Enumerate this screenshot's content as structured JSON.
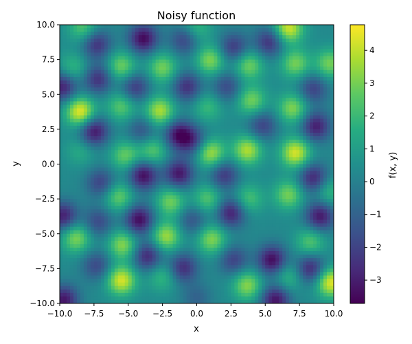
{
  "chart_data": {
    "type": "heatmap",
    "title": "Noisy function",
    "xlabel": "x",
    "ylabel": "y",
    "colorbar_label": "f(x, y)",
    "colormap": "viridis",
    "xlim": [
      -10,
      10
    ],
    "ylim": [
      -10,
      10
    ],
    "clim": [
      -3.71,
      4.78
    ],
    "xticks": [
      -10,
      -7.5,
      -5,
      -2.5,
      0,
      2.5,
      5,
      7.5,
      10
    ],
    "xtick_labels": [
      "−10.0",
      "−7.5",
      "−5.0",
      "−2.5",
      "0.0",
      "2.5",
      "5.0",
      "7.5",
      "10.0"
    ],
    "yticks": [
      -10,
      -7.5,
      -5,
      -2.5,
      0,
      2.5,
      5,
      7.5,
      10
    ],
    "ytick_labels": [
      "−10.0",
      "−7.5",
      "−5.0",
      "−2.5",
      "0.0",
      "2.5",
      "5.0",
      "7.5",
      "10.0"
    ],
    "cticks": [
      -3,
      -2,
      -1,
      0,
      1,
      2,
      3,
      4
    ],
    "ctick_labels": [
      "−3",
      "−2",
      "−1",
      "0",
      "1",
      "2",
      "3",
      "4"
    ],
    "grid": false,
    "background_level": 0.3,
    "extrema": [
      {
        "x": -8.5,
        "y": 3.75,
        "v": 4.6
      },
      {
        "x": 6.7,
        "y": 9.75,
        "v": 4.3
      },
      {
        "x": -5.5,
        "y": -8.35,
        "v": 4.3
      },
      {
        "x": 7.2,
        "y": 0.8,
        "v": 4.3
      },
      {
        "x": 9.8,
        "y": -8.5,
        "v": 4.5
      },
      {
        "x": -2.7,
        "y": 3.8,
        "v": 3.8
      },
      {
        "x": 3.7,
        "y": 1.0,
        "v": 3.8
      },
      {
        "x": 1.0,
        "y": 0.8,
        "v": 3.8
      },
      {
        "x": -5.5,
        "y": 7.0,
        "v": 3
      },
      {
        "x": -2.5,
        "y": 6.9,
        "v": 3
      },
      {
        "x": 1.0,
        "y": 7.45,
        "v": 3.2
      },
      {
        "x": 3.8,
        "y": 7.1,
        "v": 3
      },
      {
        "x": 7.2,
        "y": 7.2,
        "v": 3
      },
      {
        "x": 9.7,
        "y": 7.2,
        "v": 3
      },
      {
        "x": -9,
        "y": 6.9,
        "v": 2
      },
      {
        "x": -5.5,
        "y": 4.15,
        "v": 2.6
      },
      {
        "x": 4.0,
        "y": 4.55,
        "v": 3
      },
      {
        "x": 7.0,
        "y": 4.0,
        "v": 3.2
      },
      {
        "x": 0.8,
        "y": 4.1,
        "v": 2
      },
      {
        "x": -5.2,
        "y": 0.6,
        "v": 2.8
      },
      {
        "x": -3.2,
        "y": 0.95,
        "v": 2.6
      },
      {
        "x": -8.5,
        "y": 0.95,
        "v": 1.5
      },
      {
        "x": -5.7,
        "y": -2.35,
        "v": 2.8
      },
      {
        "x": -1.9,
        "y": -2.7,
        "v": 3
      },
      {
        "x": 0.8,
        "y": -2.5,
        "v": 2.5
      },
      {
        "x": 3.8,
        "y": -2.5,
        "v": 2.3
      },
      {
        "x": 6.7,
        "y": -2.2,
        "v": 3
      },
      {
        "x": 9.7,
        "y": -2,
        "v": 2
      },
      {
        "x": -8.8,
        "y": -5.3,
        "v": 3.2
      },
      {
        "x": -5.4,
        "y": -5.8,
        "v": 3.3
      },
      {
        "x": -2.25,
        "y": -5.2,
        "v": 3.6
      },
      {
        "x": 1.1,
        "y": -5.4,
        "v": 3.2
      },
      {
        "x": 8.3,
        "y": -5.6,
        "v": 2.5
      },
      {
        "x": 3.7,
        "y": -8.7,
        "v": 3.3
      },
      {
        "x": -2.5,
        "y": -8.1,
        "v": 2
      },
      {
        "x": 6.7,
        "y": -8.1,
        "v": 2
      },
      {
        "x": -8.3,
        "y": 9.8,
        "v": 2.5
      },
      {
        "x": 0,
        "y": 9.8,
        "v": 2
      },
      {
        "x": -3.9,
        "y": 9.0,
        "v": -3.5
      },
      {
        "x": -7.3,
        "y": 8.6,
        "v": -2.5
      },
      {
        "x": -0.9,
        "y": 8.9,
        "v": -2
      },
      {
        "x": 2.7,
        "y": 8.35,
        "v": -2.3
      },
      {
        "x": 5.3,
        "y": 8.75,
        "v": -2.5
      },
      {
        "x": -9.8,
        "y": 5.55,
        "v": -3
      },
      {
        "x": -7.2,
        "y": 6.1,
        "v": -2.5
      },
      {
        "x": -4.5,
        "y": 5.5,
        "v": -2.3
      },
      {
        "x": -0.7,
        "y": 5.55,
        "v": -2.5
      },
      {
        "x": 2.2,
        "y": 5.55,
        "v": -1.8
      },
      {
        "x": 8.5,
        "y": 5.4,
        "v": -2
      },
      {
        "x": -7.5,
        "y": 2.35,
        "v": -3.3
      },
      {
        "x": -4,
        "y": 2.4,
        "v": -1.5
      },
      {
        "x": -1.3,
        "y": 2.1,
        "v": -3.3
      },
      {
        "x": -0.2,
        "y": 1.6,
        "v": -2
      },
      {
        "x": 4.8,
        "y": 2.75,
        "v": -2
      },
      {
        "x": 8.7,
        "y": 2.7,
        "v": -3
      },
      {
        "x": -3.9,
        "y": -0.8,
        "v": -3.5
      },
      {
        "x": -1.3,
        "y": -0.7,
        "v": -3.2
      },
      {
        "x": -7,
        "y": -1.35,
        "v": -2
      },
      {
        "x": 2,
        "y": -0.8,
        "v": -2.3
      },
      {
        "x": 8.5,
        "y": -1.0,
        "v": -2.8
      },
      {
        "x": -9.75,
        "y": -3.75,
        "v": -3
      },
      {
        "x": -4.2,
        "y": -4.0,
        "v": -3.5
      },
      {
        "x": 2.5,
        "y": -3.5,
        "v": -3
      },
      {
        "x": 9,
        "y": -3.75,
        "v": -3.2
      },
      {
        "x": -0.3,
        "y": -4,
        "v": -1.5
      },
      {
        "x": -7.2,
        "y": -4.15,
        "v": -1.8
      },
      {
        "x": -3.6,
        "y": -6.6,
        "v": -2.8
      },
      {
        "x": -1,
        "y": -7.45,
        "v": -2.6
      },
      {
        "x": 2.7,
        "y": -6.9,
        "v": -2
      },
      {
        "x": 5.5,
        "y": -6.9,
        "v": -3.5
      },
      {
        "x": 8.3,
        "y": -7.5,
        "v": -2.8
      },
      {
        "x": -7.3,
        "y": -7.3,
        "v": -1.8
      },
      {
        "x": -9.7,
        "y": -9.75,
        "v": -3.2
      },
      {
        "x": 5.75,
        "y": -9.75,
        "v": -3.3
      },
      {
        "x": 0,
        "y": -9.6,
        "v": -1
      }
    ]
  }
}
